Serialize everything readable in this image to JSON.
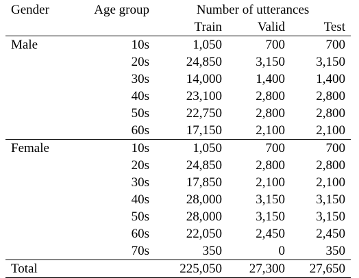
{
  "header": {
    "gender": "Gender",
    "age_group": "Age group",
    "utterances": "Number of utterances",
    "train": "Train",
    "valid": "Valid",
    "test": "Test"
  },
  "groups": [
    {
      "gender": "Male",
      "rows": [
        {
          "age": "10s",
          "train": "1,050",
          "valid": "700",
          "test": "700"
        },
        {
          "age": "20s",
          "train": "24,850",
          "valid": "3,150",
          "test": "3,150"
        },
        {
          "age": "30s",
          "train": "14,000",
          "valid": "1,400",
          "test": "1,400"
        },
        {
          "age": "40s",
          "train": "23,100",
          "valid": "2,800",
          "test": "2,800"
        },
        {
          "age": "50s",
          "train": "22,750",
          "valid": "2,800",
          "test": "2,800"
        },
        {
          "age": "60s",
          "train": "17,150",
          "valid": "2,100",
          "test": "2,100"
        }
      ]
    },
    {
      "gender": "Female",
      "rows": [
        {
          "age": "10s",
          "train": "1,050",
          "valid": "700",
          "test": "700"
        },
        {
          "age": "20s",
          "train": "24,850",
          "valid": "2,800",
          "test": "2,800"
        },
        {
          "age": "30s",
          "train": "17,850",
          "valid": "2,100",
          "test": "2,100"
        },
        {
          "age": "40s",
          "train": "28,000",
          "valid": "3,150",
          "test": "3,150"
        },
        {
          "age": "50s",
          "train": "28,000",
          "valid": "3,150",
          "test": "3,150"
        },
        {
          "age": "60s",
          "train": "22,050",
          "valid": "2,450",
          "test": "2,450"
        },
        {
          "age": "70s",
          "train": "350",
          "valid": "0",
          "test": "350"
        }
      ]
    }
  ],
  "total": {
    "label": "Total",
    "train": "225,050",
    "valid": "27,300",
    "test": "27,650"
  }
}
